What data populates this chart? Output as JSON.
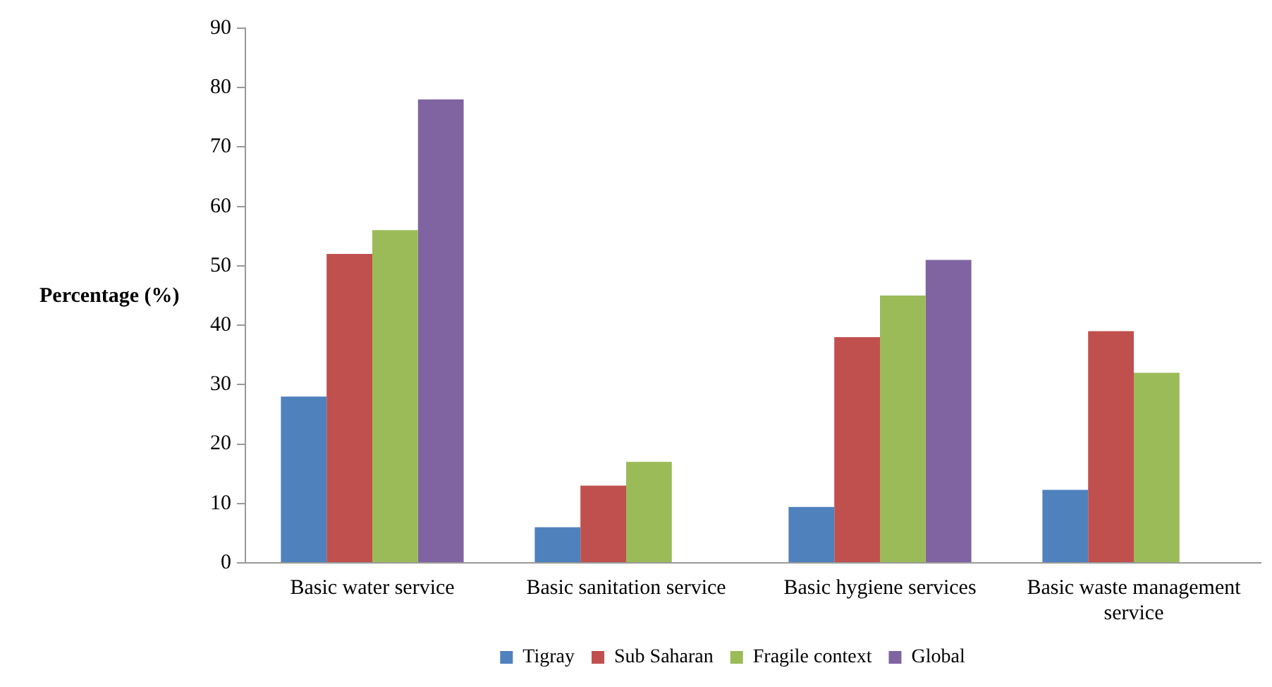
{
  "chart_data": {
    "type": "bar",
    "ylabel": "Percentage (%)",
    "categories": [
      "Basic water service",
      "Basic sanitation service",
      "Basic hygiene services",
      "Basic waste management service"
    ],
    "series": [
      {
        "name": "Tigray",
        "color": "#4f81bd",
        "values": [
          28,
          6,
          9.4,
          12.3
        ]
      },
      {
        "name": "Sub Saharan",
        "color": "#c0504d",
        "values": [
          52,
          13,
          38,
          39
        ]
      },
      {
        "name": "Fragile context",
        "color": "#9bbb59",
        "values": [
          56,
          17,
          45,
          32
        ]
      },
      {
        "name": "Global",
        "color": "#8064a2",
        "values": [
          78,
          null,
          51,
          null
        ]
      }
    ],
    "ylim": [
      0,
      90
    ],
    "yticks": [
      0,
      10,
      20,
      30,
      40,
      50,
      60,
      70,
      80,
      90
    ],
    "grid": false,
    "legend": "bottom"
  }
}
